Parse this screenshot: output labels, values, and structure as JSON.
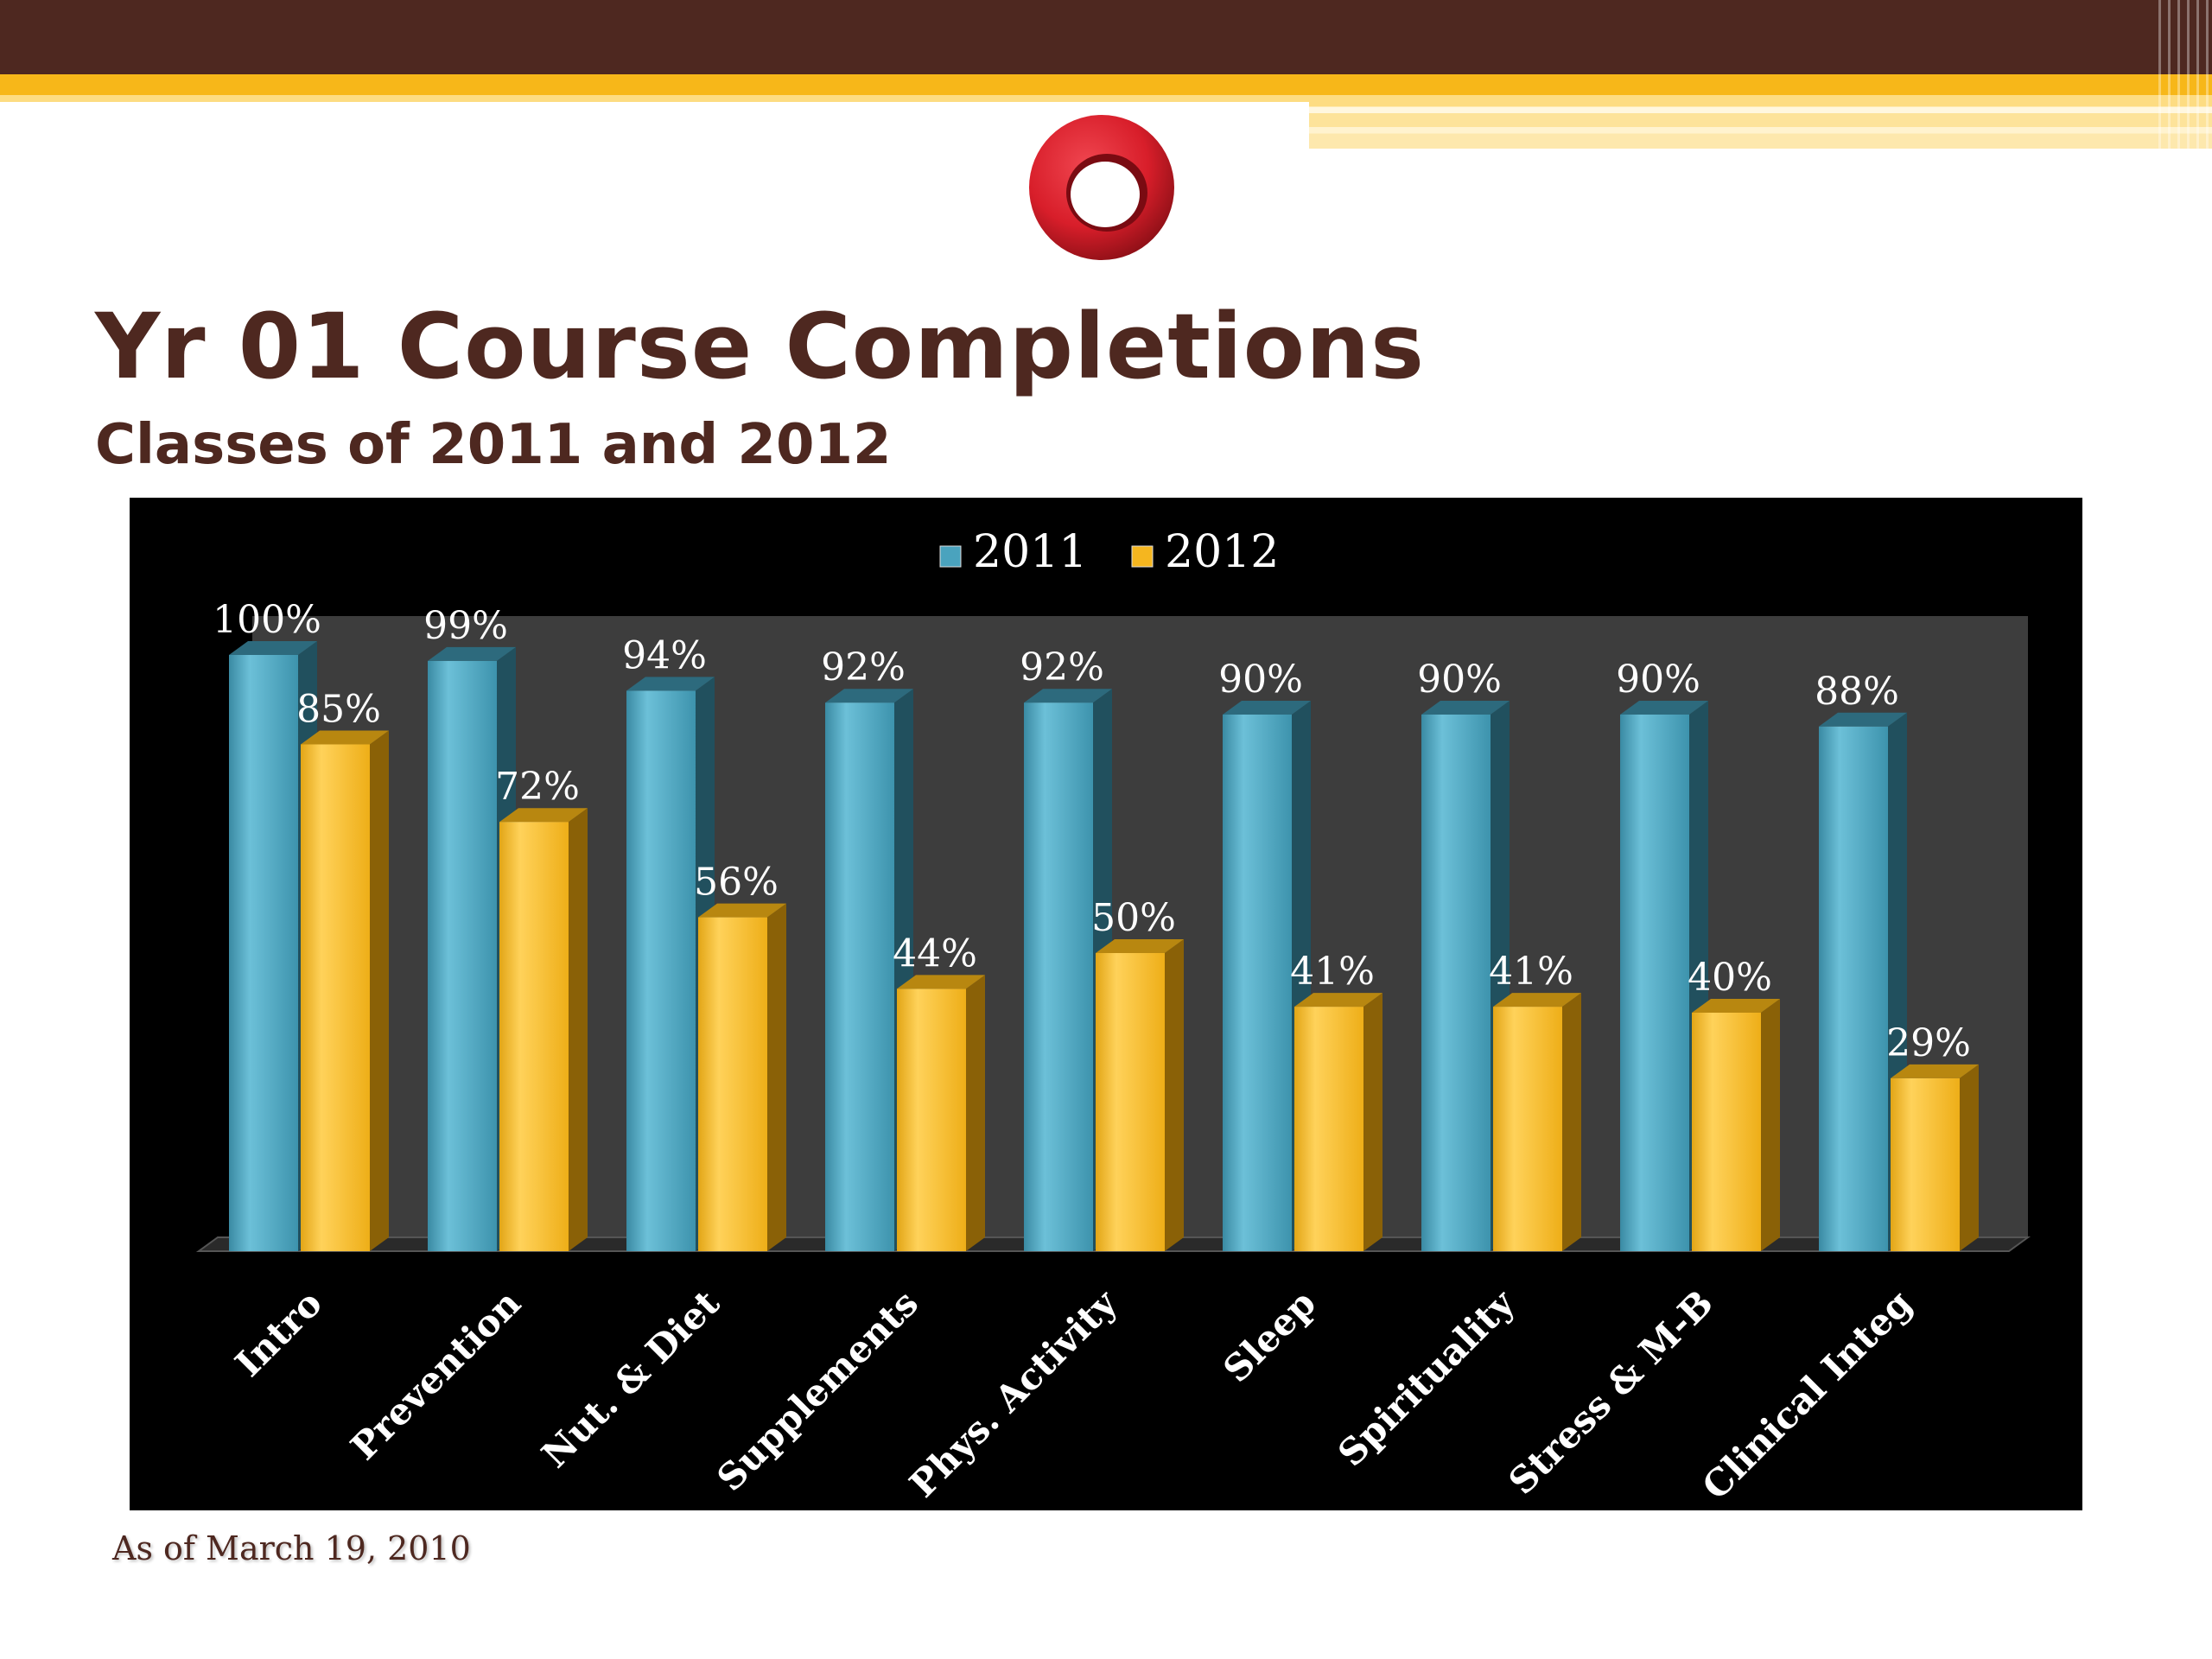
{
  "slide": {
    "title": "Yr 01 Course Completions",
    "subtitle": "Classes of 2011 and 2012",
    "footnote": "As of March 19, 2010"
  },
  "colors": {
    "header_brown": "#4e2820",
    "header_gold": "#f7b719",
    "series_2011": "#4aa3be",
    "series_2012": "#f5b61f",
    "logo_red": "#d81e2a"
  },
  "chart_data": {
    "type": "bar",
    "style": "3d-clustered-column",
    "categories": [
      "Intro",
      "Prevention",
      "Nut. & Diet",
      "Supplements",
      "Phys. Activity",
      "Sleep",
      "Spirituality",
      "Stress & M-B",
      "Clinical Integ"
    ],
    "series": [
      {
        "name": "2011",
        "values": [
          100,
          99,
          94,
          92,
          92,
          90,
          90,
          90,
          88
        ],
        "labels": [
          "100%",
          "99%",
          "94%",
          "92%",
          "92%",
          "90%",
          "90%",
          "90%",
          "88%"
        ]
      },
      {
        "name": "2012",
        "values": [
          85,
          72,
          56,
          44,
          50,
          41,
          41,
          40,
          29
        ],
        "labels": [
          "85%",
          "72%",
          "56%",
          "44%",
          "50%",
          "41%",
          "41%",
          "40%",
          "29%"
        ]
      }
    ],
    "ylim": [
      0,
      100
    ],
    "unit": "%",
    "legend_position": "top-center",
    "grid": false
  }
}
